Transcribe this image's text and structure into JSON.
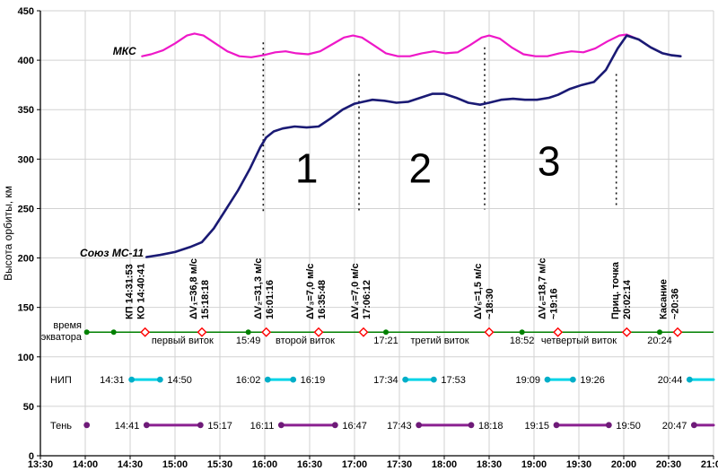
{
  "axes": {
    "y_title": "Высота орбиты, км",
    "y_ticks": [
      0,
      50,
      100,
      150,
      200,
      250,
      300,
      350,
      400,
      450
    ],
    "x_ticks": [
      "13:30",
      "14:00",
      "14:30",
      "15:00",
      "15:30",
      "16:00",
      "16:30",
      "17:00",
      "17:30",
      "18:00",
      "18:30",
      "19:00",
      "19:30",
      "20:00",
      "20:30",
      "21:00"
    ]
  },
  "colors": {
    "mks": "#ee18c8",
    "soyuz": "#1a1a74",
    "equator": "#008000",
    "nip": "#00d5e8",
    "nip_dot": "#00aec8",
    "shadow": "#8a2090",
    "shadow_dot": "#6e1a78",
    "diamond": "#ff0000",
    "grid": "#d2d2d2",
    "axis": "#000000"
  },
  "chart_data": {
    "type": "line",
    "title": "",
    "xlabel": "",
    "ylabel": "Высота орбиты, км",
    "x_start": "13:30",
    "x_end": "21:00",
    "ylim": [
      0,
      450
    ],
    "grid": true,
    "series": [
      {
        "id": "mks",
        "name": "МКС",
        "color": "#ee18c8",
        "width": 2.2,
        "points": [
          [
            "14:38",
            404
          ],
          [
            "14:44",
            406
          ],
          [
            "14:52",
            410
          ],
          [
            "15:00",
            417
          ],
          [
            "15:08",
            425
          ],
          [
            "15:13",
            427
          ],
          [
            "15:19",
            425
          ],
          [
            "15:27",
            417
          ],
          [
            "15:35",
            409
          ],
          [
            "15:43",
            404
          ],
          [
            "15:51",
            403
          ],
          [
            "15:59",
            405
          ],
          [
            "16:07",
            408
          ],
          [
            "16:14",
            409
          ],
          [
            "16:21",
            407
          ],
          [
            "16:29",
            406
          ],
          [
            "16:37",
            409
          ],
          [
            "16:45",
            416
          ],
          [
            "16:53",
            423
          ],
          [
            "16:59",
            425
          ],
          [
            "17:05",
            423
          ],
          [
            "17:13",
            415
          ],
          [
            "17:21",
            407
          ],
          [
            "17:29",
            404
          ],
          [
            "17:37",
            404
          ],
          [
            "17:45",
            407
          ],
          [
            "17:53",
            409
          ],
          [
            "18:01",
            407
          ],
          [
            "18:09",
            408
          ],
          [
            "18:17",
            415
          ],
          [
            "18:25",
            423
          ],
          [
            "18:30",
            425
          ],
          [
            "18:37",
            422
          ],
          [
            "18:45",
            413
          ],
          [
            "18:53",
            406
          ],
          [
            "19:01",
            404
          ],
          [
            "19:09",
            404
          ],
          [
            "19:17",
            407
          ],
          [
            "19:25",
            409
          ],
          [
            "19:33",
            408
          ],
          [
            "19:41",
            412
          ],
          [
            "19:49",
            419
          ],
          [
            "19:57",
            425
          ],
          [
            "20:02",
            426
          ],
          [
            "20:10",
            421
          ],
          [
            "20:18",
            413
          ],
          [
            "20:26",
            407
          ],
          [
            "20:32",
            405
          ],
          [
            "20:38",
            404
          ]
        ]
      },
      {
        "id": "soyuz",
        "name": "Союз МС-11",
        "color": "#1a1a74",
        "width": 2.6,
        "points": [
          [
            "14:41",
            201
          ],
          [
            "14:50",
            203
          ],
          [
            "15:00",
            206
          ],
          [
            "15:10",
            211
          ],
          [
            "15:18",
            216
          ],
          [
            "15:26",
            230
          ],
          [
            "15:34",
            249
          ],
          [
            "15:42",
            268
          ],
          [
            "15:50",
            290
          ],
          [
            "15:57",
            312
          ],
          [
            "16:01",
            322
          ],
          [
            "16:06",
            328
          ],
          [
            "16:12",
            331
          ],
          [
            "16:20",
            333
          ],
          [
            "16:28",
            332
          ],
          [
            "16:36",
            333
          ],
          [
            "16:44",
            341
          ],
          [
            "16:52",
            350
          ],
          [
            "17:00",
            356
          ],
          [
            "17:06",
            358
          ],
          [
            "17:12",
            360
          ],
          [
            "17:20",
            359
          ],
          [
            "17:28",
            357
          ],
          [
            "17:36",
            358
          ],
          [
            "17:44",
            362
          ],
          [
            "17:52",
            366
          ],
          [
            "18:00",
            366
          ],
          [
            "18:08",
            362
          ],
          [
            "18:16",
            357
          ],
          [
            "18:24",
            355
          ],
          [
            "18:30",
            357
          ],
          [
            "18:38",
            360
          ],
          [
            "18:46",
            361
          ],
          [
            "18:54",
            360
          ],
          [
            "19:02",
            360
          ],
          [
            "19:10",
            362
          ],
          [
            "19:16",
            365
          ],
          [
            "19:24",
            371
          ],
          [
            "19:32",
            375
          ],
          [
            "19:40",
            378
          ],
          [
            "19:48",
            390
          ],
          [
            "19:56",
            412
          ],
          [
            "20:02",
            425
          ],
          [
            "20:10",
            421
          ],
          [
            "20:18",
            413
          ],
          [
            "20:26",
            407
          ],
          [
            "20:32",
            405
          ],
          [
            "20:38",
            404
          ]
        ]
      }
    ],
    "series_labels": [
      {
        "id": "mks",
        "text": "МКС",
        "time": "14:34",
        "km": 409
      },
      {
        "id": "soyuz",
        "text": "Союз МС-11",
        "time": "14:39",
        "km": 205
      }
    ],
    "separators": [
      {
        "time": "15:59",
        "km_top": 418,
        "km_bottom": 247
      },
      {
        "time": "17:03",
        "km_top": 386,
        "km_bottom": 245
      },
      {
        "time": "18:27",
        "km_top": 413,
        "km_bottom": 249
      },
      {
        "time": "19:55",
        "km_top": 386,
        "km_bottom": 252
      }
    ],
    "phase_numbers": [
      {
        "label": "1",
        "time": "16:28",
        "km": 291
      },
      {
        "label": "2",
        "time": "17:44",
        "km": 291
      },
      {
        "label": "3",
        "time": "19:10",
        "km": 298
      }
    ],
    "annotations": [
      {
        "lines": [
          "КП 14:31:53",
          "КО 14:40:41"
        ],
        "time": "14:33"
      },
      {
        "lines": [
          "ΔV₁=36,8 м/с",
          "15:18:18"
        ],
        "time": "15:16"
      },
      {
        "lines": [
          "ΔV₂=31,3 м/с",
          "16:01:16"
        ],
        "time": "15:59"
      },
      {
        "lines": [
          "ΔV₃=7,0 м/с",
          "16:35:48"
        ],
        "time": "16:34"
      },
      {
        "lines": [
          "ΔV₄=7,0 м/с",
          "17:06:12"
        ],
        "time": "17:04"
      },
      {
        "lines": [
          "ΔV₅=1,5 м/с",
          "~18:30"
        ],
        "time": "18:26"
      },
      {
        "lines": [
          "ΔV₆=18,7 м/с",
          "~19:16"
        ],
        "time": "19:09"
      },
      {
        "lines": [
          "Приц. точка",
          "20:02:14"
        ],
        "time": "19:58"
      },
      {
        "lines": [
          "Касание",
          "~20:36"
        ],
        "time": "20:30"
      }
    ]
  },
  "equator_row": {
    "label_lines": [
      "время",
      "экватора"
    ],
    "line_km": 125,
    "start": "14:00",
    "end": "21:00",
    "dots": [
      "14:01",
      "14:19",
      "15:49",
      "17:21",
      "18:52",
      "20:24"
    ],
    "diamonds": [
      "14:40",
      "15:18",
      "16:01",
      "16:36",
      "17:06",
      "18:30",
      "19:16",
      "20:02",
      "20:36"
    ],
    "orbit_labels": [
      {
        "text": "первый виток",
        "time": "15:05"
      },
      {
        "text": "второй виток",
        "time": "16:27"
      },
      {
        "text": "третий виток",
        "time": "17:57"
      },
      {
        "text": "четвертый виток",
        "time": "19:30"
      }
    ],
    "crossing_labels": [
      {
        "text": "15:49",
        "time": "15:49"
      },
      {
        "text": "17:21",
        "time": "17:21"
      },
      {
        "text": "18:52",
        "time": "18:52"
      },
      {
        "text": "20:24",
        "time": "20:24"
      }
    ]
  },
  "nip_row": {
    "label": "НИП",
    "km": 77,
    "segments": [
      {
        "start": "14:31",
        "end": "14:50",
        "start_label": "14:31",
        "end_label": "14:50"
      },
      {
        "start": "16:02",
        "end": "16:19",
        "start_label": "16:02",
        "end_label": "16:19"
      },
      {
        "start": "17:34",
        "end": "17:53",
        "start_label": "17:34",
        "end_label": "17:53"
      },
      {
        "start": "19:09",
        "end": "19:26",
        "start_label": "19:09",
        "end_label": "19:26"
      },
      {
        "start": "20:44",
        "end": "21:02",
        "start_label": "20:44",
        "open_end": true
      }
    ]
  },
  "shadow_row": {
    "label": "Тень",
    "km": 31,
    "lone_dots": [
      "14:01"
    ],
    "segments": [
      {
        "start": "14:41",
        "end": "15:17",
        "start_label": "14:41",
        "end_label": "15:17"
      },
      {
        "start": "16:11",
        "end": "16:47",
        "start_label": "16:11",
        "end_label": "16:47"
      },
      {
        "start": "17:43",
        "end": "18:18",
        "start_label": "17:43",
        "end_label": "18:18"
      },
      {
        "start": "19:15",
        "end": "19:50",
        "start_label": "19:15",
        "end_label": "19:50"
      },
      {
        "start": "20:47",
        "end": "21:04",
        "start_label": "20:47",
        "open_end": true
      }
    ]
  }
}
